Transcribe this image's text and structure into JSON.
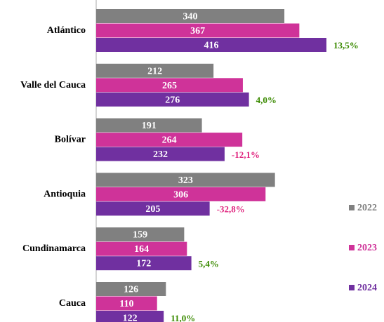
{
  "chart_data": {
    "type": "hbar",
    "categories": [
      "Atlántico",
      "Valle del Cauca",
      "Bolívar",
      "Antioquia",
      "Cundinamarca",
      "Cauca"
    ],
    "series": [
      {
        "name": "2022",
        "color": "#808080",
        "values": [
          340,
          212,
          191,
          323,
          159,
          126
        ]
      },
      {
        "name": "2023",
        "color": "#cf3399",
        "values": [
          367,
          265,
          264,
          306,
          164,
          110
        ]
      },
      {
        "name": "2024",
        "color": "#7030a0",
        "values": [
          416,
          276,
          232,
          205,
          172,
          122
        ]
      }
    ],
    "annotations": [
      {
        "text": "13,5%",
        "color": "#3a8a00"
      },
      {
        "text": "4,0%",
        "color": "#3a8a00"
      },
      {
        "text": "-12,1%",
        "color": "#e0267f"
      },
      {
        "text": "-32,8%",
        "color": "#e0267f"
      },
      {
        "text": "5,4%",
        "color": "#3a8a00"
      },
      {
        "text": "11,0%",
        "color": "#3a8a00"
      }
    ],
    "xlim": [
      0,
      520
    ],
    "legend": "right"
  }
}
